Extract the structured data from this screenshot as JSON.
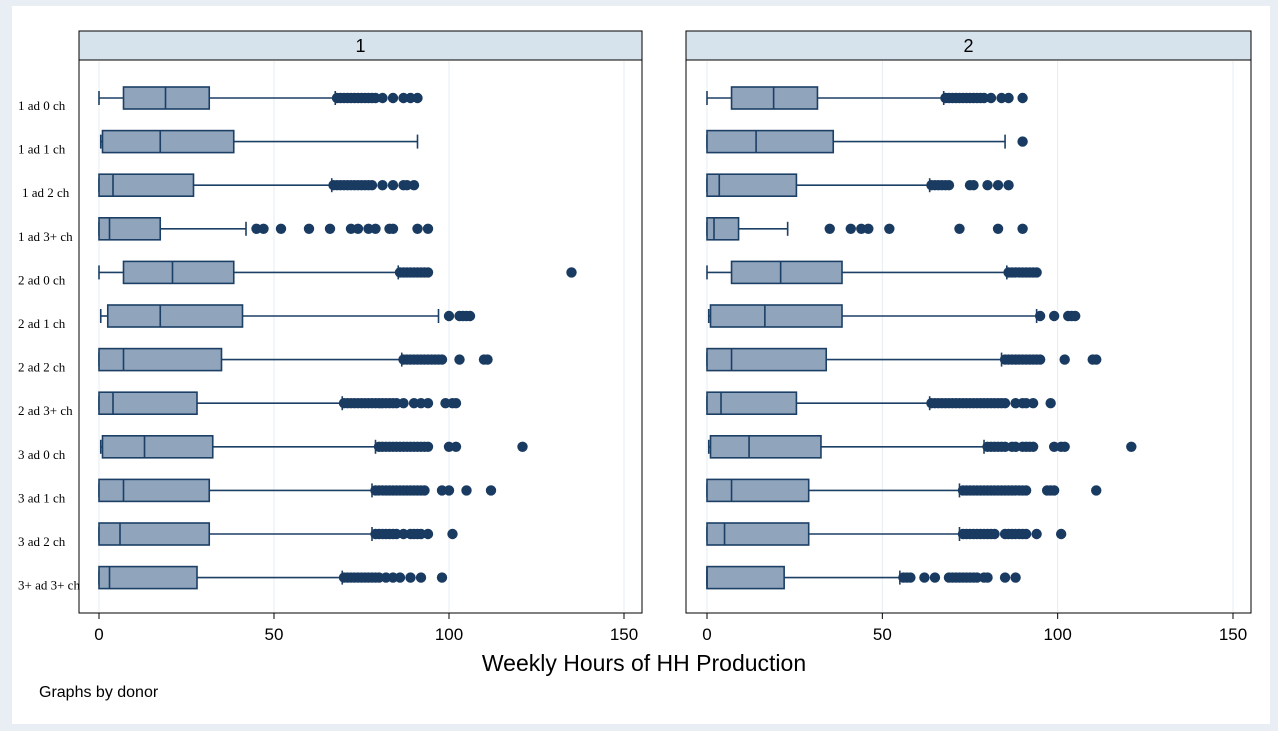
{
  "chart_data": {
    "type": "box",
    "note": "Graphs by donor",
    "xlabel": "Weekly Hours of HH Production",
    "xlim": [
      0,
      150
    ],
    "xticks": [
      0,
      50,
      100,
      150
    ],
    "grid": true,
    "categories": [
      "1 ad 0 ch",
      "1 ad 1 ch",
      "1 ad 2 ch",
      "1 ad 3+ ch",
      "2 ad 0 ch",
      "2 ad 1 ch",
      "2 ad 2 ch",
      "2 ad 3+ ch",
      "3 ad 0 ch",
      "3 ad 1 ch",
      "3 ad 2 ch",
      "3+ ad 3+ ch"
    ],
    "panels": [
      {
        "title": "1",
        "boxes": [
          {
            "wl": 0,
            "q1": 7,
            "med": 19,
            "q3": 31.5,
            "wh": 67.5,
            "outliers": [
              68,
              69,
              70,
              71,
              72,
              73,
              74,
              75,
              76,
              77,
              78,
              79,
              81,
              84,
              87,
              89,
              91
            ]
          },
          {
            "wl": 0.5,
            "q1": 1,
            "med": 17.5,
            "q3": 38.5,
            "wh": 91,
            "outliers": []
          },
          {
            "wl": 0,
            "q1": 0,
            "med": 4,
            "q3": 27,
            "wh": 66.5,
            "outliers": [
              67,
              68,
              69,
              70,
              71,
              72,
              73,
              74,
              75,
              76,
              77,
              78,
              81,
              84,
              87,
              88,
              90
            ]
          },
          {
            "wl": 0,
            "q1": 0,
            "med": 3,
            "q3": 17.5,
            "wh": 42,
            "outliers": [
              45,
              47,
              52,
              60,
              66,
              72,
              74,
              77,
              79,
              83,
              84,
              91,
              94
            ]
          },
          {
            "wl": 0,
            "q1": 7,
            "med": 21,
            "q3": 38.5,
            "wh": 85.5,
            "outliers": [
              86,
              87,
              88,
              89,
              90,
              91,
              92,
              93,
              94,
              135
            ]
          },
          {
            "wl": 0.5,
            "q1": 2.5,
            "med": 17.5,
            "q3": 41,
            "wh": 97,
            "outliers": [
              100,
              103,
              104,
              105,
              106
            ]
          },
          {
            "wl": 0,
            "q1": 0,
            "med": 7,
            "q3": 35,
            "wh": 86.5,
            "outliers": [
              87,
              88,
              89,
              90,
              91,
              92,
              93,
              94,
              95,
              96,
              97,
              98,
              103,
              110,
              111
            ]
          },
          {
            "wl": 0,
            "q1": 0,
            "med": 4,
            "q3": 28,
            "wh": 69.5,
            "outliers": [
              70,
              71,
              72,
              73,
              74,
              75,
              76,
              77,
              78,
              79,
              80,
              81,
              82,
              83,
              84,
              85,
              87,
              90,
              92,
              94,
              99,
              101,
              102
            ]
          },
          {
            "wl": 0.5,
            "q1": 1,
            "med": 13,
            "q3": 32.5,
            "wh": 79,
            "outliers": [
              80,
              81,
              82,
              83,
              84,
              85,
              86,
              87,
              88,
              89,
              90,
              91,
              92,
              93,
              94,
              100,
              102,
              121
            ]
          },
          {
            "wl": 0,
            "q1": 0,
            "med": 7,
            "q3": 31.5,
            "wh": 78,
            "outliers": [
              79,
              80,
              81,
              82,
              83,
              84,
              85,
              86,
              87,
              88,
              89,
              90,
              91,
              92,
              93,
              98,
              100,
              105,
              112
            ]
          },
          {
            "wl": 0,
            "q1": 0,
            "med": 6,
            "q3": 31.5,
            "wh": 78,
            "outliers": [
              79,
              80,
              81,
              82,
              83,
              84,
              85,
              87,
              89,
              90,
              91,
              92,
              94,
              101
            ]
          },
          {
            "wl": 0,
            "q1": 0,
            "med": 3,
            "q3": 28,
            "wh": 69.5,
            "outliers": [
              70,
              71,
              72,
              73,
              74,
              75,
              76,
              77,
              78,
              79,
              80,
              82,
              84,
              86,
              89,
              92,
              98
            ]
          }
        ]
      },
      {
        "title": "2",
        "boxes": [
          {
            "wl": 0,
            "q1": 7,
            "med": 19,
            "q3": 31.5,
            "wh": 67.5,
            "outliers": [
              68,
              69,
              70,
              71,
              72,
              73,
              74,
              75,
              76,
              77,
              78,
              79,
              81,
              84,
              86,
              90
            ]
          },
          {
            "wl": 0,
            "q1": 0,
            "med": 14,
            "q3": 36,
            "wh": 85,
            "outliers": [
              90
            ]
          },
          {
            "wl": 0,
            "q1": 0,
            "med": 3.5,
            "q3": 25.5,
            "wh": 63.5,
            "outliers": [
              64,
              65,
              66,
              67,
              68,
              69,
              75,
              76,
              80,
              83,
              86
            ]
          },
          {
            "wl": 0,
            "q1": 0,
            "med": 2,
            "q3": 9,
            "wh": 23,
            "outliers": [
              35,
              41,
              44,
              46,
              52,
              72,
              83,
              90
            ]
          },
          {
            "wl": 0,
            "q1": 7,
            "med": 21,
            "q3": 38.5,
            "wh": 85.5,
            "outliers": [
              86,
              87,
              88,
              89,
              90,
              91,
              92,
              93,
              94
            ]
          },
          {
            "wl": 0.5,
            "q1": 1,
            "med": 16.5,
            "q3": 38.5,
            "wh": 94,
            "outliers": [
              95,
              99,
              103,
              104,
              105
            ]
          },
          {
            "wl": 0,
            "q1": 0,
            "med": 7,
            "q3": 34,
            "wh": 84,
            "outliers": [
              85,
              86,
              87,
              88,
              89,
              90,
              91,
              92,
              93,
              94,
              95,
              102,
              110,
              111
            ]
          },
          {
            "wl": 0,
            "q1": 0,
            "med": 4,
            "q3": 25.5,
            "wh": 63.5,
            "outliers": [
              64,
              65,
              66,
              67,
              68,
              69,
              70,
              71,
              72,
              73,
              74,
              75,
              76,
              77,
              78,
              79,
              80,
              81,
              82,
              83,
              84,
              85,
              88,
              90,
              91,
              93,
              98
            ]
          },
          {
            "wl": 0.5,
            "q1": 1,
            "med": 12,
            "q3": 32.5,
            "wh": 79,
            "outliers": [
              80,
              81,
              82,
              83,
              84,
              85,
              87,
              88,
              90,
              91,
              92,
              93,
              99,
              101,
              102,
              121
            ]
          },
          {
            "wl": 0,
            "q1": 0,
            "med": 7,
            "q3": 29,
            "wh": 72,
            "outliers": [
              73,
              74,
              75,
              76,
              77,
              78,
              79,
              80,
              81,
              82,
              83,
              84,
              85,
              86,
              87,
              88,
              89,
              90,
              91,
              97,
              98,
              99,
              111
            ]
          },
          {
            "wl": 0,
            "q1": 0,
            "med": 5,
            "q3": 29,
            "wh": 72,
            "outliers": [
              73,
              74,
              75,
              76,
              77,
              78,
              79,
              80,
              81,
              82,
              85,
              86,
              87,
              88,
              89,
              90,
              91,
              94,
              101
            ]
          },
          {
            "wl": 0,
            "q1": 0,
            "med": 0,
            "q3": 22,
            "wh": 55,
            "outliers": [
              56,
              57,
              58,
              62,
              65,
              69,
              70,
              71,
              72,
              73,
              74,
              75,
              76,
              77,
              79,
              80,
              85,
              88
            ]
          }
        ]
      }
    ]
  },
  "colors": {
    "box_fill": "#90a4bc",
    "line": "#1c3f66",
    "marker": "#1a3b61",
    "panel_header": "#d6e2ec",
    "outer_bg": "#e9eef4",
    "grid": "#e4ecf3"
  }
}
